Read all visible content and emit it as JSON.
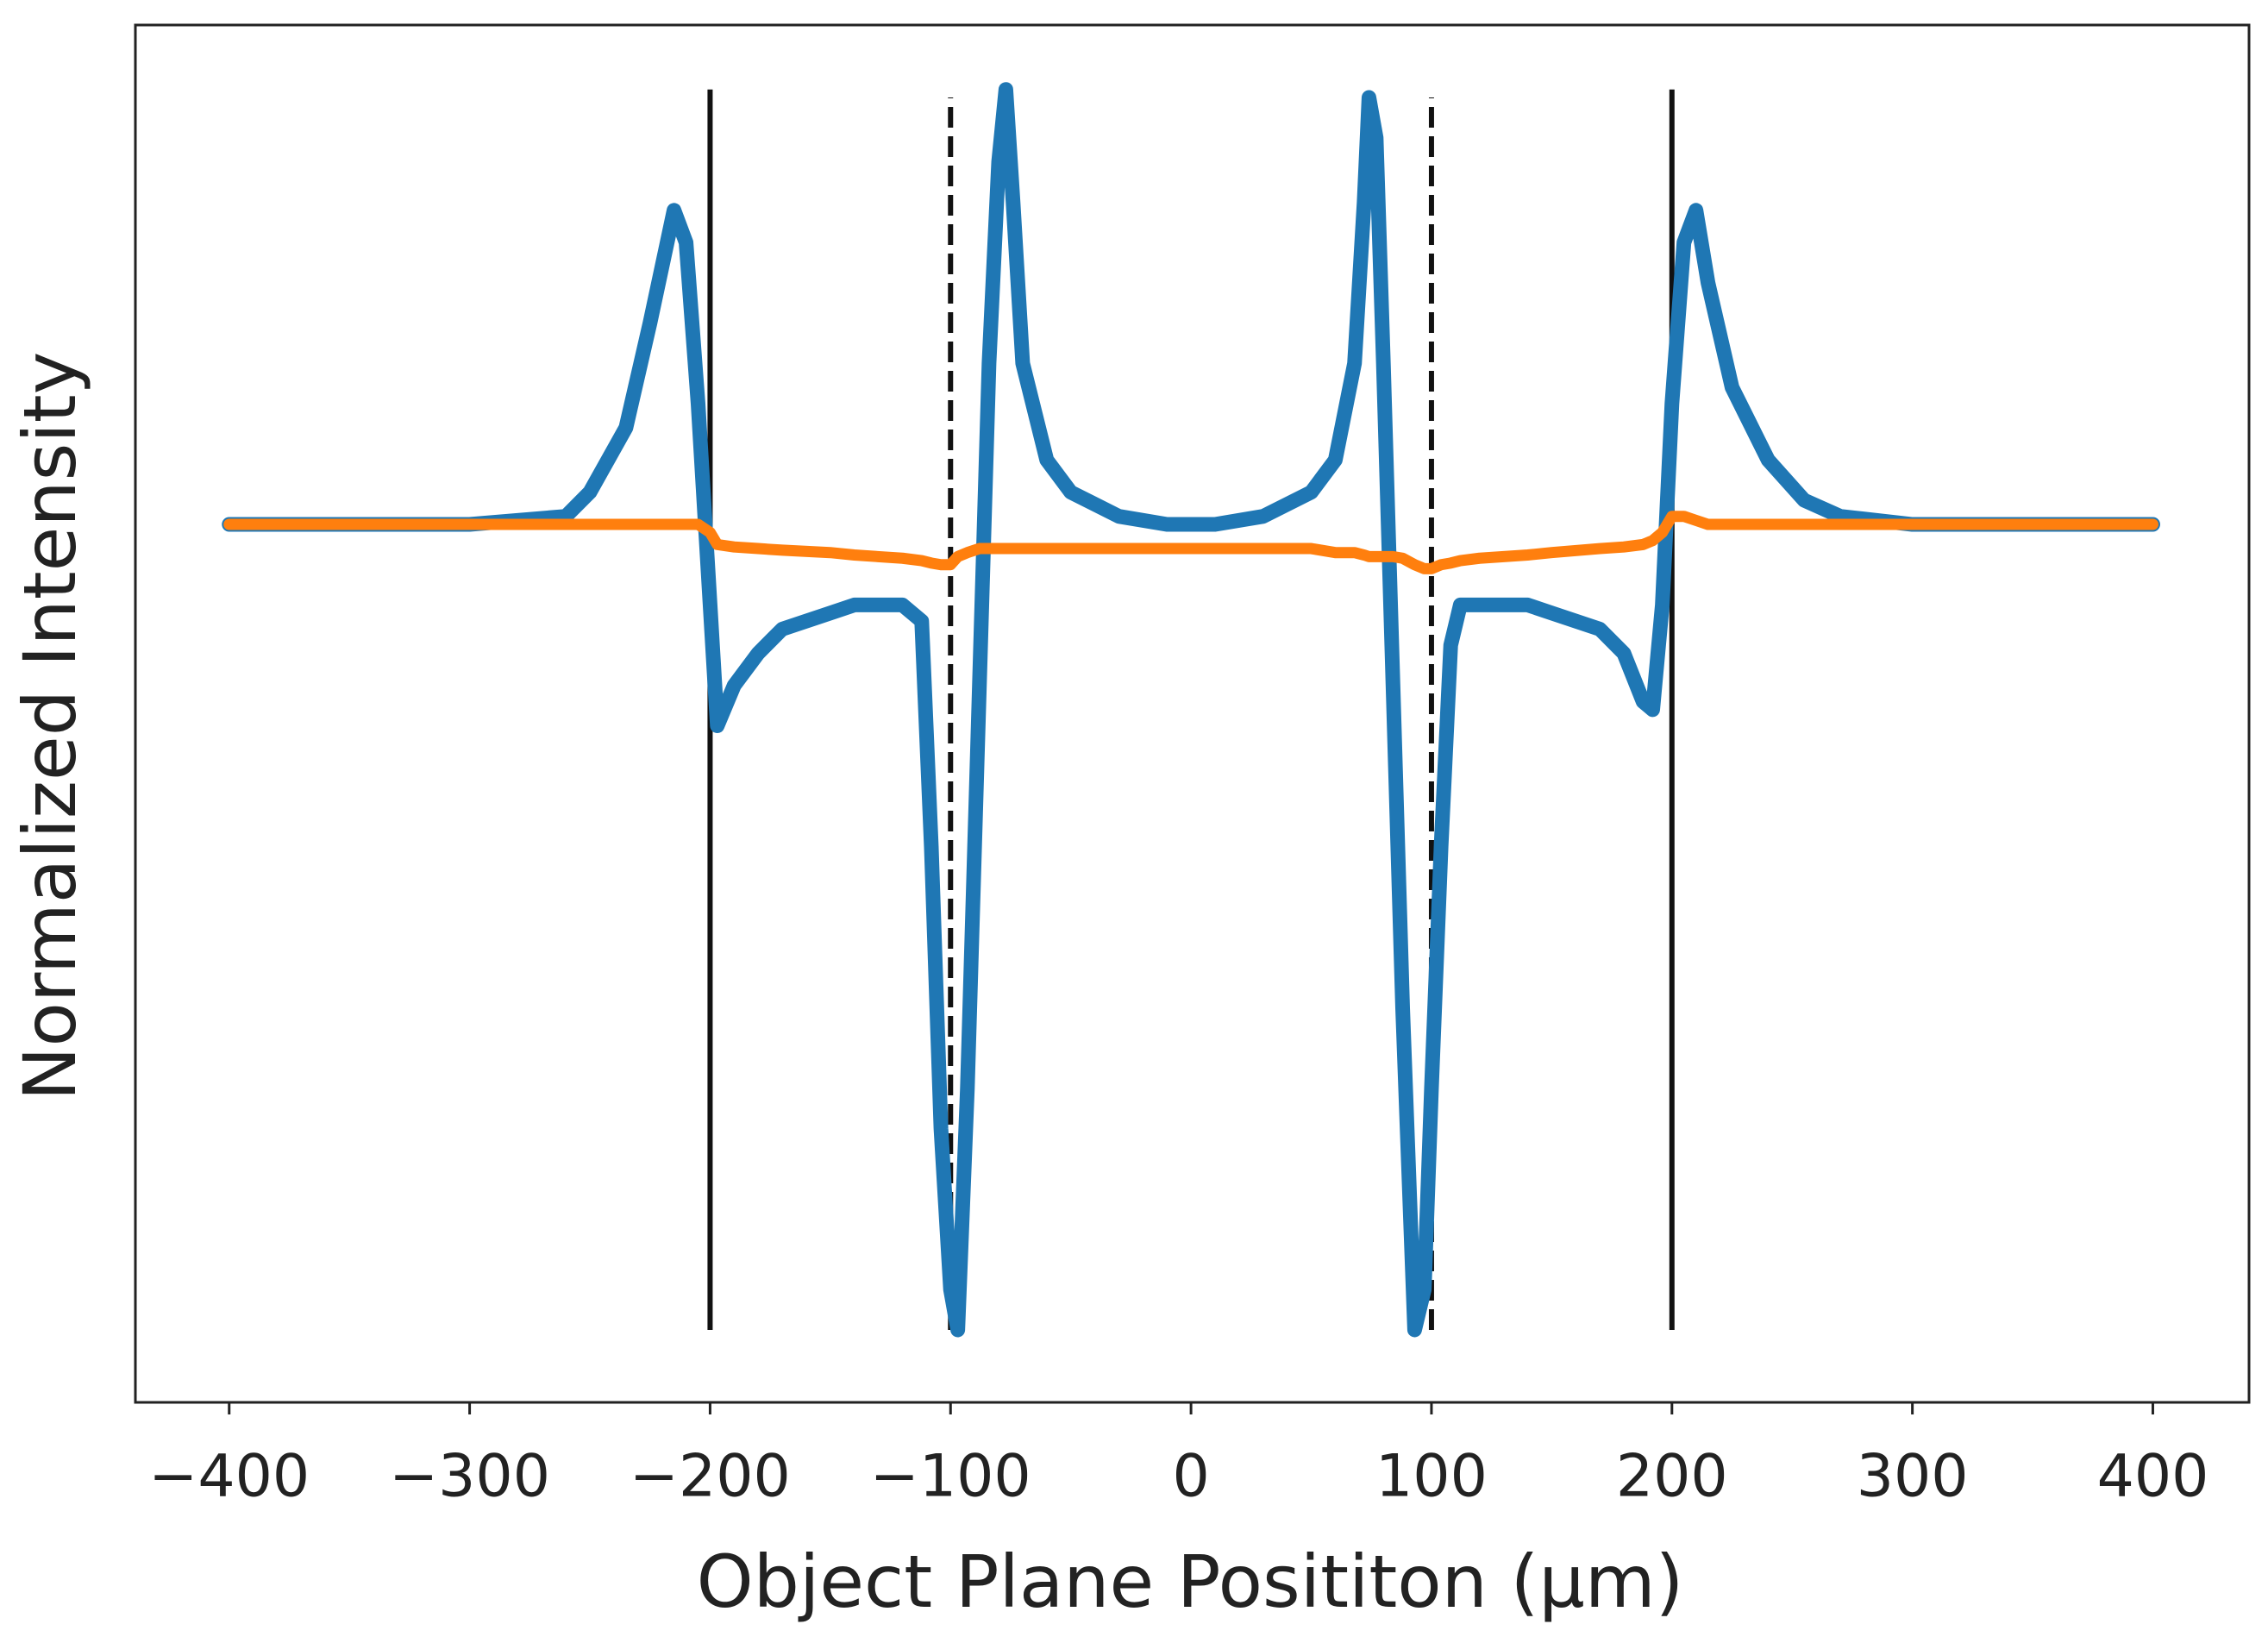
{
  "chart_data": {
    "type": "line",
    "xlabel": "Object Plane Posititon (μm)",
    "ylabel": "Normalized Intensity",
    "xlim": [
      -439,
      440
    ],
    "ylim": [
      -0.09,
      1.62
    ],
    "xticks": [
      {
        "value": -400,
        "label": "−400"
      },
      {
        "value": -300,
        "label": "−300"
      },
      {
        "value": -200,
        "label": "−200"
      },
      {
        "value": -100,
        "label": "−100"
      },
      0,
      100,
      200,
      300,
      400
    ],
    "x": [
      -400,
      -300,
      -260,
      -250,
      -235,
      -225,
      -215,
      -210,
      -205,
      -200,
      -197,
      -190,
      -180,
      -170,
      -150,
      -140,
      -120,
      -112,
      -108,
      -104,
      -100,
      -97,
      -93,
      -88,
      -84,
      -80,
      -77,
      -74,
      -70,
      -60,
      -50,
      -30,
      -10,
      0,
      10,
      30,
      50,
      60,
      68,
      72,
      74,
      77,
      80,
      84,
      88,
      93,
      97,
      100,
      104,
      108,
      112,
      120,
      140,
      150,
      170,
      180,
      188,
      192,
      196,
      200,
      205,
      210,
      215,
      225,
      240,
      255,
      270,
      300,
      400
    ],
    "series": [
      {
        "color": "#1f77b4",
        "values": [
          1.0,
          1.0,
          1.01,
          1.04,
          1.12,
          1.25,
          1.39,
          1.35,
          1.15,
          0.9,
          0.75,
          0.8,
          0.84,
          0.87,
          0.89,
          0.9,
          0.9,
          0.88,
          0.6,
          0.25,
          0.05,
          0.0,
          0.3,
          0.8,
          1.2,
          1.45,
          1.54,
          1.4,
          1.2,
          1.08,
          1.04,
          1.01,
          1.0,
          1.0,
          1.0,
          1.01,
          1.04,
          1.08,
          1.2,
          1.4,
          1.53,
          1.48,
          1.2,
          0.8,
          0.4,
          0.0,
          0.05,
          0.3,
          0.6,
          0.85,
          0.9,
          0.9,
          0.9,
          0.89,
          0.87,
          0.84,
          0.78,
          0.77,
          0.9,
          1.15,
          1.35,
          1.39,
          1.3,
          1.17,
          1.08,
          1.03,
          1.01,
          1.0,
          1.0
        ]
      },
      {
        "color": "#ff7f0e",
        "values": [
          1.0,
          1.0,
          1.0,
          1.0,
          1.0,
          1.0,
          1.0,
          1.0,
          1.0,
          0.99,
          0.975,
          0.972,
          0.97,
          0.968,
          0.965,
          0.962,
          0.958,
          0.955,
          0.952,
          0.95,
          0.95,
          0.96,
          0.965,
          0.97,
          0.97,
          0.97,
          0.97,
          0.97,
          0.97,
          0.97,
          0.97,
          0.97,
          0.97,
          0.97,
          0.97,
          0.97,
          0.97,
          0.965,
          0.965,
          0.962,
          0.96,
          0.96,
          0.96,
          0.96,
          0.958,
          0.95,
          0.945,
          0.945,
          0.95,
          0.952,
          0.955,
          0.958,
          0.962,
          0.965,
          0.97,
          0.972,
          0.975,
          0.98,
          0.99,
          1.01,
          1.01,
          1.005,
          1.0,
          1.0,
          1.0,
          1.0,
          1.0,
          1.0,
          1.0
        ]
      }
    ],
    "vlines": [
      {
        "x": -200,
        "ymin": 0,
        "ymax": 1.54,
        "style": "solid",
        "color": "#111111"
      },
      {
        "x": -100,
        "ymin": 0,
        "ymax": 1.53,
        "style": "dashed",
        "color": "#111111"
      },
      {
        "x": 100,
        "ymin": 0,
        "ymax": 1.53,
        "style": "dashed",
        "color": "#111111"
      },
      {
        "x": 200,
        "ymin": 0,
        "ymax": 1.54,
        "style": "solid",
        "color": "#111111"
      }
    ]
  }
}
